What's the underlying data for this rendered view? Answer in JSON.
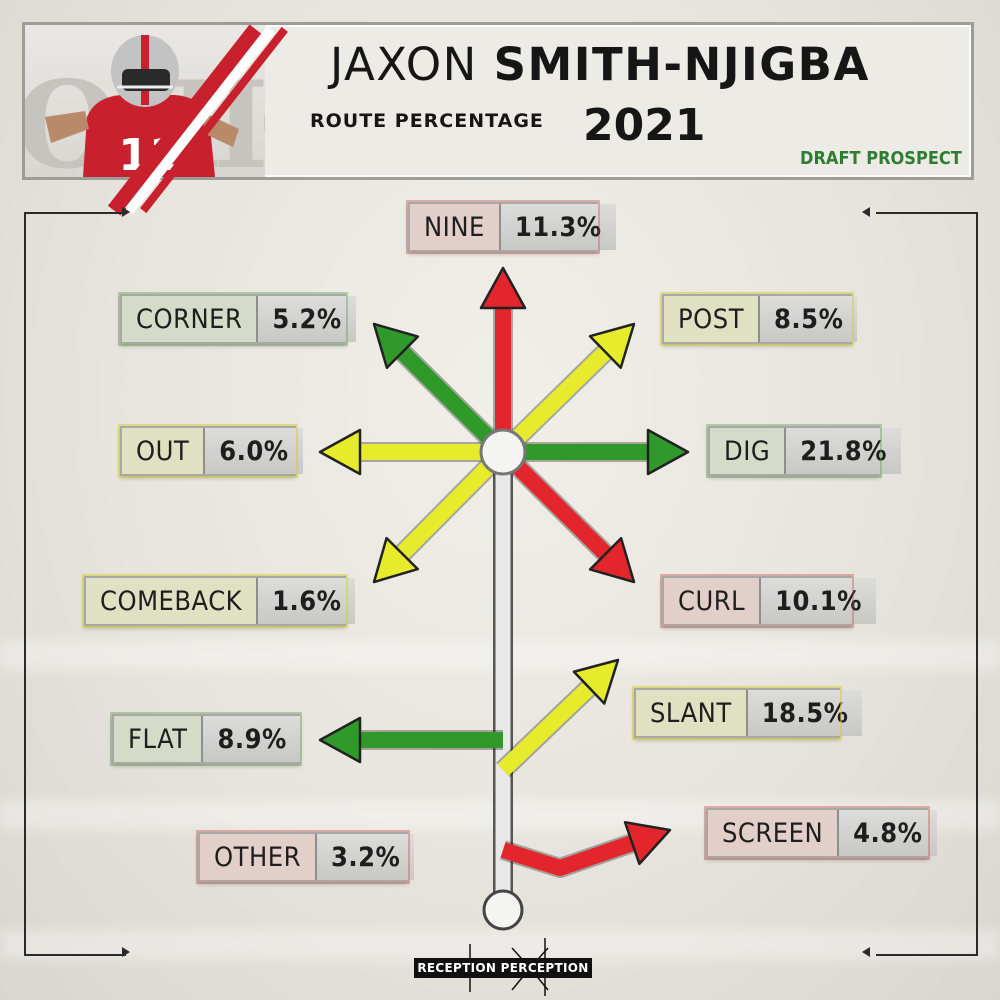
{
  "header": {
    "first_name": "JAXON",
    "last_name": "SMITH-NJIGBA",
    "subtitle": "ROUTE PERCENTAGE",
    "year": "2021",
    "tag": "DRAFT PROSPECT",
    "jersey_number": "11"
  },
  "colors": {
    "red": "#e3262b",
    "green": "#2f9a2a",
    "yellow": "#e6ec2c",
    "stem": "#e8e8e8",
    "draft_green": "#2f7d33"
  },
  "routes": [
    {
      "name": "NINE",
      "pct": "11.3%",
      "color": "red"
    },
    {
      "name": "CORNER",
      "pct": "5.2%",
      "color": "green"
    },
    {
      "name": "POST",
      "pct": "8.5%",
      "color": "yellow"
    },
    {
      "name": "OUT",
      "pct": "6.0%",
      "color": "yellow"
    },
    {
      "name": "DIG",
      "pct": "21.8%",
      "color": "green"
    },
    {
      "name": "COMEBACK",
      "pct": "1.6%",
      "color": "yellow"
    },
    {
      "name": "CURL",
      "pct": "10.1%",
      "color": "red"
    },
    {
      "name": "SLANT",
      "pct": "18.5%",
      "color": "yellow"
    },
    {
      "name": "FLAT",
      "pct": "8.9%",
      "color": "green"
    },
    {
      "name": "OTHER",
      "pct": "3.2%",
      "color": "red"
    },
    {
      "name": "SCREEN",
      "pct": "4.8%",
      "color": "red"
    }
  ],
  "logo": {
    "text": "RECEPTION PERCEPTION"
  }
}
